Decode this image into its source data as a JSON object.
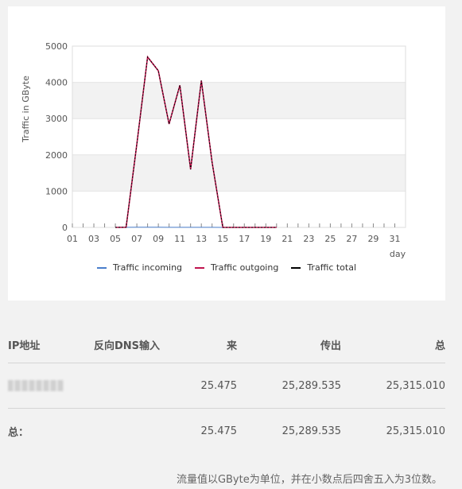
{
  "chart_data": {
    "type": "line",
    "ylabel": "Traffic in GByte",
    "xlabel": "day",
    "ylim": [
      0,
      5000
    ],
    "yticks": [
      0,
      1000,
      2000,
      3000,
      4000,
      5000
    ],
    "xticks": [
      "01",
      "03",
      "05",
      "07",
      "09",
      "11",
      "13",
      "15",
      "17",
      "19",
      "21",
      "23",
      "25",
      "27",
      "29",
      "31"
    ],
    "grid": "horizontal bands",
    "legend_position": "bottom",
    "x": [
      1,
      2,
      3,
      4,
      5,
      6,
      7,
      8,
      9,
      10,
      11,
      12,
      13,
      14,
      15,
      16,
      17,
      18,
      19,
      20,
      21,
      22,
      23,
      24,
      25,
      26,
      27,
      28,
      29,
      30,
      31
    ],
    "series": [
      {
        "name": "Traffic incoming",
        "color": "#4a7ecb",
        "values": [
          null,
          null,
          null,
          null,
          2,
          2,
          4,
          4,
          4,
          3,
          3,
          3,
          3,
          3,
          1,
          1,
          1,
          1,
          1,
          1,
          null,
          null,
          null,
          null,
          null,
          null,
          null,
          null,
          null,
          null,
          null
        ]
      },
      {
        "name": "Traffic outgoing",
        "color": "#c0144e",
        "values": [
          null,
          null,
          null,
          null,
          0,
          5,
          2300,
          4700,
          4320,
          2850,
          3920,
          1600,
          4050,
          1800,
          0,
          0,
          0,
          0,
          0,
          0,
          null,
          null,
          null,
          null,
          null,
          null,
          null,
          null,
          null,
          null,
          null
        ]
      },
      {
        "name": "Traffic total",
        "color": "#000000",
        "values": [
          null,
          null,
          null,
          null,
          0,
          5,
          2300,
          4700,
          4320,
          2850,
          3920,
          1600,
          4050,
          1800,
          0,
          0,
          0,
          0,
          0,
          0,
          null,
          null,
          null,
          null,
          null,
          null,
          null,
          null,
          null,
          null,
          null
        ]
      }
    ]
  },
  "table": {
    "headers": {
      "ip": "IP地址",
      "dns": "反向DNS输入",
      "in": "来",
      "out": "传出",
      "total": "总"
    },
    "row": {
      "in": "25.475",
      "out": "25,289.535",
      "total": "25,315.010"
    },
    "total_row": {
      "label": "总：",
      "in": "25.475",
      "out": "25,289.535",
      "total": "25,315.010"
    }
  },
  "footnote": "流量值以GByte为单位，并在小数点后四舍五入为3位数。"
}
